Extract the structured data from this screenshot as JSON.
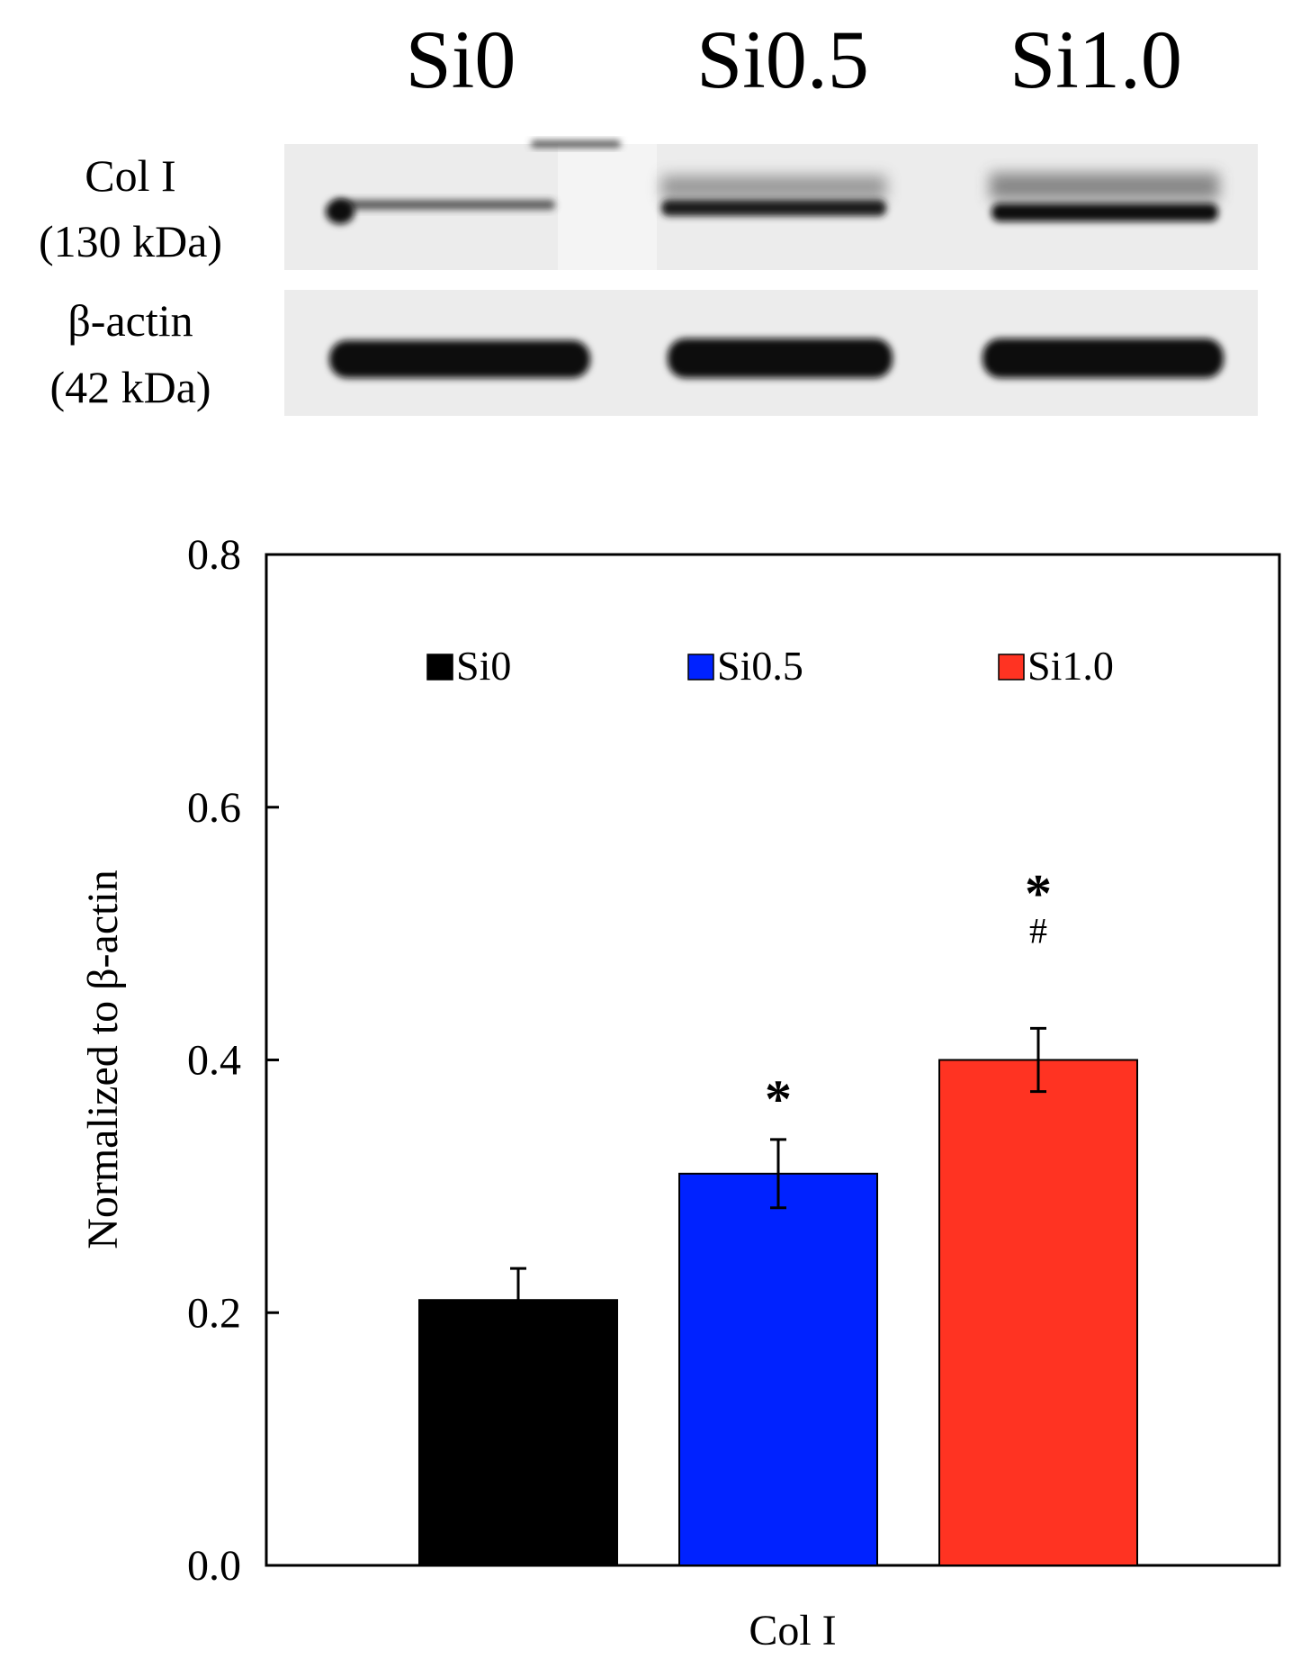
{
  "blot": {
    "lane_labels": [
      "Si0",
      "Si0.5",
      "Si1.0"
    ],
    "rows": [
      {
        "protein": "Col I",
        "weight": "(130 kDa)"
      },
      {
        "protein": "β-actin",
        "weight": "(42 kDa)"
      }
    ]
  },
  "chart_data": {
    "type": "bar",
    "title": "",
    "xlabel": "Col I",
    "ylabel": "Normalized to β-actin",
    "ylim": [
      0.0,
      0.8
    ],
    "yticks": [
      "0.0",
      "0.2",
      "0.4",
      "0.6",
      "0.8"
    ],
    "grid": false,
    "legend_position": "top",
    "categories": [
      "Col I"
    ],
    "series": [
      {
        "name": "Si0",
        "values": [
          0.21
        ],
        "error": [
          0.025
        ],
        "color": "#000000",
        "annotations": []
      },
      {
        "name": "Si0.5",
        "values": [
          0.31
        ],
        "error": [
          0.027
        ],
        "color": "#0022ff",
        "annotations": [
          "*"
        ]
      },
      {
        "name": "Si1.0",
        "values": [
          0.4
        ],
        "error": [
          0.025
        ],
        "color": "#ff3322",
        "annotations": [
          "*",
          "#"
        ]
      }
    ]
  }
}
